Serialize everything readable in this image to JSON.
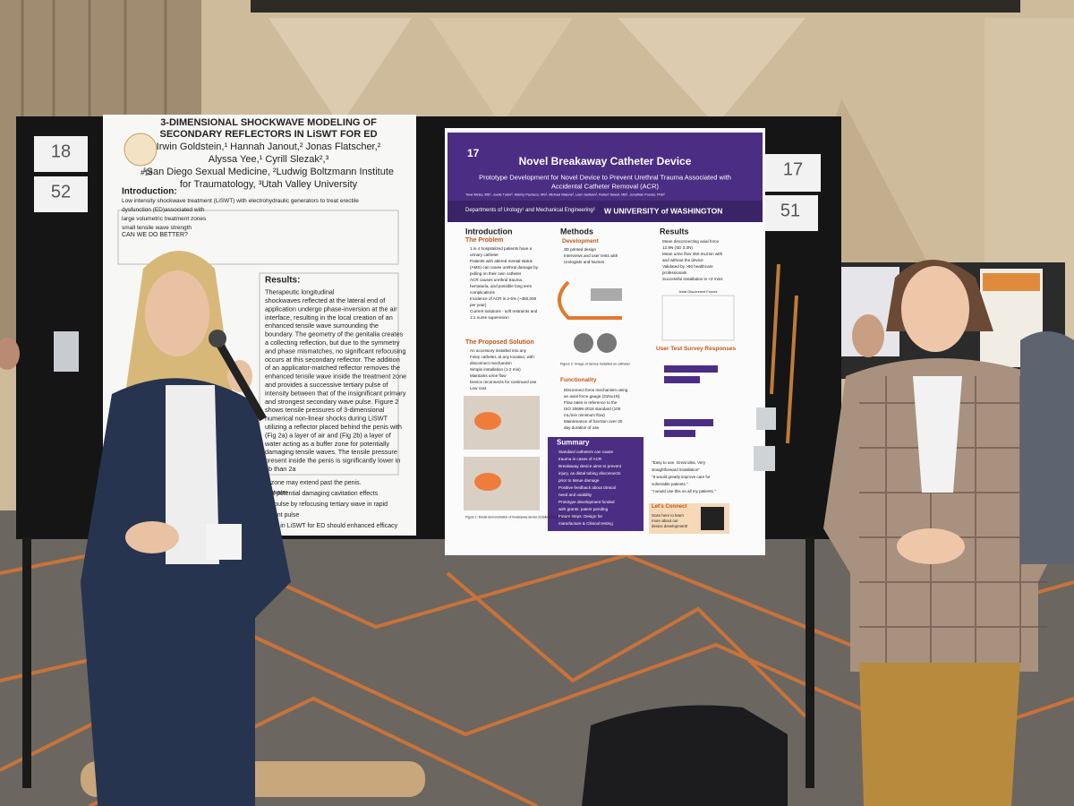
{
  "board_cards": [
    "18",
    "52",
    "17",
    "51"
  ],
  "left_poster": {
    "number": "#18",
    "title_lines": [
      "3-DIMENSIONAL SHOCKWAVE MODELING OF",
      "SECONDARY REFLECTORS IN LiSWT FOR ED"
    ],
    "author_lines": [
      "Irwin Goldstein,¹ Hannah Janout,² Jonas Flatscher,²",
      "Alyssa Yee,¹ Cyrill Slezak²,³",
      "¹San Diego Sexual Medicine, ²Ludwig Boltzmann Institute",
      "for Traumatology, ³Utah Valley University"
    ],
    "introduction": "Introduction:",
    "intro_lines": [
      "Low intensity shockwave treatment (LiSWT) with electrohydraulic generators to treat erectile",
      "dysfunction (ED)associated with",
      "large volumetric treatment zones",
      "small tensile wave strength"
    ],
    "question": "CAN WE DO BETTER?",
    "results": "Results:",
    "results_lines": [
      "Therapeutic longitudinal",
      "shockwaves reflected at the lateral end of",
      "application undergo phase-inversion at the air",
      "interface, resulting in the local creation of an",
      "enhanced tensile wave surrounding the",
      "boundary. The geometry of the genitalia creates",
      "a collecting reflection, but due to the symmetry",
      "and phase mismatches, no significant refocusing",
      "occurs at this secondary reflector. The addition",
      "of an applicator-matched reflector removes the",
      "enhanced tensile wave inside the treatment zone",
      "and provides a successive tertiary pulse of",
      "intensity between that of the insignificant primary",
      "and strongest secondary wave pulse. Figure 2",
      "shows tensile pressures of 3-dimensional",
      "numerical non-linear shocks during LiSWT",
      "utilizing a reflector placed behind the penis with",
      "(Fig 2a) a layer of air and (Fig 2b) a layer of",
      "water acting as a buffer zone for potentially",
      "damaging tensile waves. The tensile pressure",
      "present inside the penis is significantly lower in",
      "2b than 2a"
    ],
    "caption": "(2b) water",
    "footer_lines": [
      "focal zone may extend past the penis.",
      "es and potential damaging cavitation effects",
      "single pulse by refocusing tertiary wave in rapid",
      "treatment pulse",
      "reflector in LiSWT for ED should enhanced efficacy"
    ]
  },
  "right_poster": {
    "number": "17",
    "title": "Novel Breakaway Catheter Device",
    "subtitle_lines": [
      "Prototype Development for Novel Device to Prevent Urethral Trauma Associated with",
      "Accidental Catheter Removal (ACR)"
    ],
    "authors": "Tova Weiss, MD¹, Joelle Tudor², Manny Pacheco, MS², Michael Malone², Liam Sullivan², Robert Sweet, MD¹, Jonathan Posner, PhD²",
    "departments": "Departments of Urology¹ and Mechanical Engineering²",
    "university": "W UNIVERSITY of WASHINGTON",
    "introduction": "Introduction",
    "problem": "The Problem",
    "problem_lines": [
      "1 in 4 hospitalized patients have a",
      "urinary catheter",
      "Patients with altered mental status",
      "(AMS) can cause urethral damage by",
      "pulling on their own catheter",
      "ACR causes urethral trauma,",
      "hematuria, and possible long term",
      "complications",
      "Incidence of ACR is 2-5% (~450,000",
      "per year)",
      "Current solutions - soft restraints and",
      "1:1 nurse supervision"
    ],
    "solution": "The Proposed Solution",
    "solution_lines": [
      "An accessory installed into any",
      "Foley catheter, at any location, with",
      "disconnect mechanism",
      "Simple installation (1-2 min)",
      "Maintains urine flow",
      "Device reconnects for continued use",
      "Low cost"
    ],
    "methods": "Methods",
    "development": "Development",
    "development_lines": [
      "3D printed design",
      "Interviews and user tests with",
      "Urologists and Nurses"
    ],
    "figure2": "Figure 2: Image of device installed on catheter",
    "functionality": "Functionality",
    "functionality_lines": [
      "Disconnect force mechanism using",
      "an axial force gauge (31N±1N)",
      "Flow rates in reference to the",
      "ISO 20696-2018 standard (100",
      "mL/min minimum flow)",
      "Maintenance of function over 30",
      "day duration of use"
    ],
    "summary": "Summary",
    "summary_lines": [
      "Standard catheters can cause",
      "trauma in cases of ACR",
      "Breakaway device aims to prevent",
      "injury, as distal tubing disconnects",
      "prior to tissue damage",
      "Positive feedback about clinical",
      "need and usability",
      "Prototype development funded",
      "with grants; patent pending",
      "Future steps: Design for",
      "manufacture & Clinical testing"
    ],
    "results": "Results",
    "results_lines": [
      "Mean disconnecting axial force",
      "12.9N (SD 3.3N)",
      "Mean urine flow 350 mL/min with",
      "and without the device",
      "Validated by >60 healthcare",
      "professionals",
      "Successful installation in <2 mins"
    ],
    "chart_title": "Axial Disconnect Forces",
    "survey": "User Test Survey Responses",
    "quotes": [
      "\"Easy to use. Great idea. Very",
      "straightforward installation\"",
      "\"It would greatly improve care for",
      "vulnerable patients.\"",
      "\"I would use this on all my patients.\""
    ],
    "connect": "Let's Connect",
    "connect_lines": [
      "Scan here to learn",
      "more about our",
      "device development!"
    ],
    "figure1": "Figure 1: Model demonstration of breakaway device installed into Foley catheter"
  }
}
